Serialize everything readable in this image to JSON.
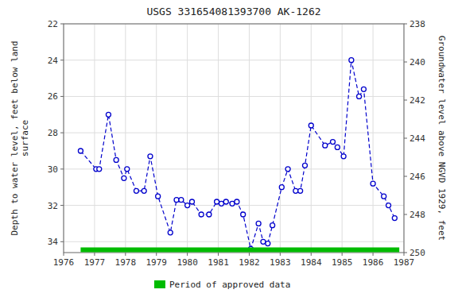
{
  "chart_data": {
    "type": "line",
    "title": "USGS 331654081393700 AK-1262",
    "y_label": "Depth to water level, feet below land\nsurface",
    "y2_label": "Groundwater level above NGVD 1929, feet",
    "xlim": [
      1976,
      1987
    ],
    "xticks": [
      1976,
      1977,
      1978,
      1979,
      1980,
      1981,
      1982,
      1983,
      1984,
      1985,
      1986,
      1987
    ],
    "ylim": [
      34.6,
      22
    ],
    "yticks": [
      22,
      24,
      26,
      28,
      30,
      32,
      34
    ],
    "y2lim": [
      250,
      238
    ],
    "y2ticks": [
      250,
      248,
      246,
      244,
      242,
      240,
      238
    ],
    "grid": true,
    "legend": "bottom",
    "x": [
      1976.55,
      1977.05,
      1977.15,
      1977.45,
      1977.7,
      1977.95,
      1978.05,
      1978.35,
      1978.6,
      1978.8,
      1979.05,
      1979.45,
      1979.65,
      1979.8,
      1980.0,
      1980.15,
      1980.45,
      1980.7,
      1980.95,
      1981.1,
      1981.25,
      1981.45,
      1981.6,
      1981.8,
      1982.05,
      1982.3,
      1982.45,
      1982.6,
      1982.75,
      1983.05,
      1983.25,
      1983.5,
      1983.65,
      1983.8,
      1984.0,
      1984.45,
      1984.7,
      1984.85,
      1985.05,
      1985.3,
      1985.55,
      1985.7,
      1986.0,
      1986.35,
      1986.5,
      1986.7
    ],
    "series": [
      {
        "color": "#0000cc",
        "marker": "circle",
        "line_style": "dashed",
        "values": [
          29.0,
          30.0,
          30.0,
          27.0,
          29.5,
          30.5,
          30.0,
          31.2,
          31.2,
          29.3,
          31.5,
          33.5,
          31.7,
          31.7,
          32.0,
          31.8,
          32.5,
          32.5,
          31.8,
          31.9,
          31.8,
          31.9,
          31.8,
          32.5,
          34.4,
          33.0,
          34.0,
          34.1,
          33.1,
          31.0,
          30.0,
          31.2,
          31.2,
          29.8,
          27.6,
          28.7,
          28.5,
          28.8,
          29.3,
          24.0,
          26.0,
          25.6,
          30.8,
          31.5,
          32.0,
          32.7
        ]
      },
      {
        "name": "Period of approved data",
        "type": "line",
        "color": "#00bb00",
        "line_style": "solid",
        "x": [
          1976.55,
          1986.85
        ],
        "values": [
          34.45,
          34.45
        ]
      }
    ]
  }
}
